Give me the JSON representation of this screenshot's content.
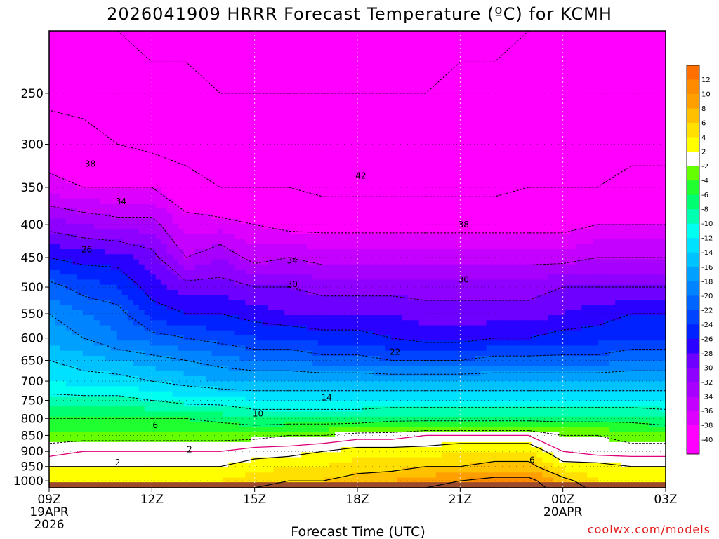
{
  "chart_data": {
    "type": "heatmap",
    "title": "2026041909 HRRR Forecast Temperature (ºC) for KCMH",
    "xlabel": "Forecast Time (UTC)",
    "ylabel": "",
    "x_ticks": [
      {
        "hour": 0,
        "label": "09Z",
        "sub1": "19APR",
        "sub2": "2026"
      },
      {
        "hour": 3,
        "label": "12Z"
      },
      {
        "hour": 6,
        "label": "15Z"
      },
      {
        "hour": 9,
        "label": "18Z"
      },
      {
        "hour": 12,
        "label": "21Z"
      },
      {
        "hour": 15,
        "label": "00Z",
        "sub1": "20APR"
      },
      {
        "hour": 18,
        "label": "03Z"
      }
    ],
    "xlim": [
      0,
      18
    ],
    "y_ticks": [
      250,
      300,
      350,
      400,
      450,
      500,
      550,
      600,
      650,
      700,
      750,
      800,
      850,
      900,
      950,
      1000
    ],
    "ylim_hpa": [
      1025,
      200
    ],
    "y_scale": "log-pressure",
    "grid": true,
    "times": [
      0,
      1,
      2,
      3,
      4,
      5,
      6,
      7,
      8,
      9,
      10,
      11,
      12,
      13,
      14,
      15,
      16,
      17,
      18
    ],
    "levels": [
      200,
      250,
      300,
      350,
      400,
      450,
      500,
      550,
      600,
      650,
      700,
      750,
      800,
      850,
      900,
      950,
      1000,
      1025
    ],
    "temperature": [
      [
        -46,
        -45,
        -46,
        -47,
        -47,
        -48,
        -48,
        -48,
        -48,
        -49,
        -48,
        -47,
        -47,
        -47,
        -46,
        -45,
        -45,
        -45,
        -45
      ],
      [
        -43,
        -43,
        -44,
        -45,
        -45,
        -46,
        -46,
        -46,
        -46,
        -46,
        -46,
        -46,
        -45,
        -45,
        -45,
        -45,
        -44,
        -44,
        -44
      ],
      [
        -40,
        -41,
        -42,
        -43,
        -44,
        -45,
        -45,
        -45,
        -45,
        -45,
        -45,
        -45,
        -45,
        -44,
        -44,
        -44,
        -44,
        -43,
        -43
      ],
      [
        -37,
        -38,
        -38,
        -38,
        -40,
        -42,
        -42,
        -42,
        -43,
        -43,
        -43,
        -43,
        -43,
        -43,
        -42,
        -42,
        -42,
        -41,
        -41
      ],
      [
        -31,
        -32,
        -33,
        -33,
        -37,
        -37,
        -38,
        -39,
        -39,
        -39,
        -39,
        -39,
        -39,
        -39,
        -39,
        -39,
        -38,
        -38,
        -38
      ],
      [
        -26,
        -27,
        -27,
        -29,
        -34,
        -32,
        -35,
        -34,
        -35,
        -35,
        -35,
        -35,
        -35,
        -35,
        -35,
        -35,
        -34,
        -34,
        -34
      ],
      [
        -21,
        -23,
        -24,
        -27,
        -29,
        -29,
        -30,
        -30,
        -31,
        -31,
        -31,
        -31,
        -31,
        -31,
        -31,
        -30,
        -30,
        -30,
        -30
      ],
      [
        -18,
        -20,
        -21,
        -25,
        -26,
        -26,
        -27,
        -28,
        -28,
        -28,
        -28,
        -29,
        -29,
        -29,
        -29,
        -28,
        -27,
        -26,
        -26
      ],
      [
        -17,
        -18,
        -20,
        -21,
        -22,
        -23,
        -24,
        -24,
        -25,
        -25,
        -26,
        -27,
        -27,
        -26,
        -26,
        -25,
        -25,
        -24,
        -24
      ],
      [
        -14,
        -15,
        -16,
        -17,
        -18,
        -19,
        -20,
        -20,
        -21,
        -21,
        -22,
        -22,
        -22,
        -21,
        -21,
        -21,
        -21,
        -20,
        -20
      ],
      [
        -12,
        -13,
        -13,
        -14,
        -15,
        -16,
        -16,
        -16,
        -16,
        -16,
        -16,
        -16,
        -16,
        -16,
        -16,
        -16,
        -16,
        -16,
        -16
      ],
      [
        -9,
        -9,
        -9,
        -10,
        -11,
        -11,
        -12,
        -12,
        -12,
        -12,
        -12,
        -12,
        -12,
        -12,
        -12,
        -12,
        -12,
        -12,
        -12
      ],
      [
        -6,
        -6,
        -6,
        -6,
        -6,
        -7,
        -8,
        -8,
        -8,
        -8,
        -7,
        -7,
        -7,
        -7,
        -7,
        -7,
        -7,
        -7,
        -8
      ],
      [
        -3,
        -3,
        -3,
        -3,
        -3,
        -3,
        -3,
        -2,
        -2,
        -1,
        -1,
        0,
        0,
        0,
        0,
        -2,
        -2,
        -3,
        -3
      ],
      [
        -1,
        0,
        0,
        0,
        0,
        0,
        1,
        1,
        2,
        3,
        3,
        3,
        4,
        4,
        4,
        0,
        -1,
        -1,
        -1
      ],
      [
        2,
        2,
        2,
        2,
        2,
        2,
        3,
        4,
        4,
        5,
        5,
        6,
        6,
        7,
        7,
        3,
        3,
        2,
        2
      ],
      [
        3,
        3,
        4,
        4,
        4,
        4,
        5,
        6,
        6,
        7,
        8,
        9,
        10,
        11,
        11,
        7,
        4,
        4,
        4
      ],
      [
        4,
        4,
        4,
        4,
        5,
        5,
        6,
        7,
        7,
        8,
        9,
        10,
        11,
        12,
        12,
        8,
        5,
        4,
        4
      ]
    ],
    "contour_labels": [
      {
        "text": "38",
        "t": 1.2,
        "p": 322
      },
      {
        "text": "34",
        "t": 2.1,
        "p": 368
      },
      {
        "text": "26",
        "t": 1.1,
        "p": 437
      },
      {
        "text": "42",
        "t": 9.1,
        "p": 336
      },
      {
        "text": "38",
        "t": 12.1,
        "p": 400
      },
      {
        "text": "34",
        "t": 7.1,
        "p": 455
      },
      {
        "text": "30",
        "t": 7.1,
        "p": 495
      },
      {
        "text": "30",
        "t": 12.1,
        "p": 487
      },
      {
        "text": "22",
        "t": 10.1,
        "p": 631
      },
      {
        "text": "14",
        "t": 8.1,
        "p": 742
      },
      {
        "text": "10",
        "t": 6.1,
        "p": 787
      },
      {
        "text": "6",
        "t": 3.1,
        "p": 820
      },
      {
        "text": "2",
        "t": 4.1,
        "p": 894
      },
      {
        "text": "2",
        "t": 2.0,
        "p": 936
      },
      {
        "text": "6",
        "t": 14.1,
        "p": 928
      }
    ],
    "colorbar": {
      "bins": [
        {
          "lo": -42,
          "hi": -40,
          "color": "#ff00ff"
        },
        {
          "lo": -40,
          "hi": -38,
          "color": "#ff00ff"
        },
        {
          "lo": -38,
          "hi": -36,
          "color": "#dd00ff"
        },
        {
          "lo": -36,
          "hi": -34,
          "color": "#c400ff"
        },
        {
          "lo": -34,
          "hi": -32,
          "color": "#a800ff"
        },
        {
          "lo": -32,
          "hi": -30,
          "color": "#8e00ff"
        },
        {
          "lo": -30,
          "hi": -28,
          "color": "#6e00ff"
        },
        {
          "lo": -28,
          "hi": -26,
          "color": "#2a00ff"
        },
        {
          "lo": -26,
          "hi": -24,
          "color": "#0022ff"
        },
        {
          "lo": -24,
          "hi": -22,
          "color": "#0044ff"
        },
        {
          "lo": -22,
          "hi": -20,
          "color": "#0064ff"
        },
        {
          "lo": -20,
          "hi": -18,
          "color": "#0084ff"
        },
        {
          "lo": -18,
          "hi": -16,
          "color": "#00a0ff"
        },
        {
          "lo": -16,
          "hi": -14,
          "color": "#00c2ff"
        },
        {
          "lo": -14,
          "hi": -12,
          "color": "#00e0ff"
        },
        {
          "lo": -12,
          "hi": -10,
          "color": "#00fff0"
        },
        {
          "lo": -10,
          "hi": -8,
          "color": "#00ffb0"
        },
        {
          "lo": -8,
          "hi": -6,
          "color": "#00ff70"
        },
        {
          "lo": -6,
          "hi": -4,
          "color": "#20ff30"
        },
        {
          "lo": -4,
          "hi": -2,
          "color": "#66ff00"
        },
        {
          "lo": -2,
          "hi": 2,
          "color": "#ffffff"
        },
        {
          "lo": 2,
          "hi": 4,
          "color": "#ffff00"
        },
        {
          "lo": 4,
          "hi": 6,
          "color": "#ffe000"
        },
        {
          "lo": 6,
          "hi": 8,
          "color": "#ffc000"
        },
        {
          "lo": 8,
          "hi": 10,
          "color": "#ffa000"
        },
        {
          "lo": 10,
          "hi": 12,
          "color": "#ff8c00"
        },
        {
          "lo": 12,
          "hi": 14,
          "color": "#ff7000"
        }
      ],
      "tick_labels": [
        "12",
        "10",
        "8",
        "6",
        "4",
        "2",
        "-2",
        "-4",
        "-6",
        "-8",
        "-10",
        "-12",
        "-14",
        "-16",
        "-18",
        "-20",
        "-22",
        "-24",
        "-26",
        "-28",
        "-30",
        "-32",
        "-34",
        "-36",
        "-38",
        "-40"
      ],
      "below_ground_color": "#9b4a2b",
      "freezing_line_color": "#e0007a"
    }
  },
  "credit": "coolwx.com/models"
}
